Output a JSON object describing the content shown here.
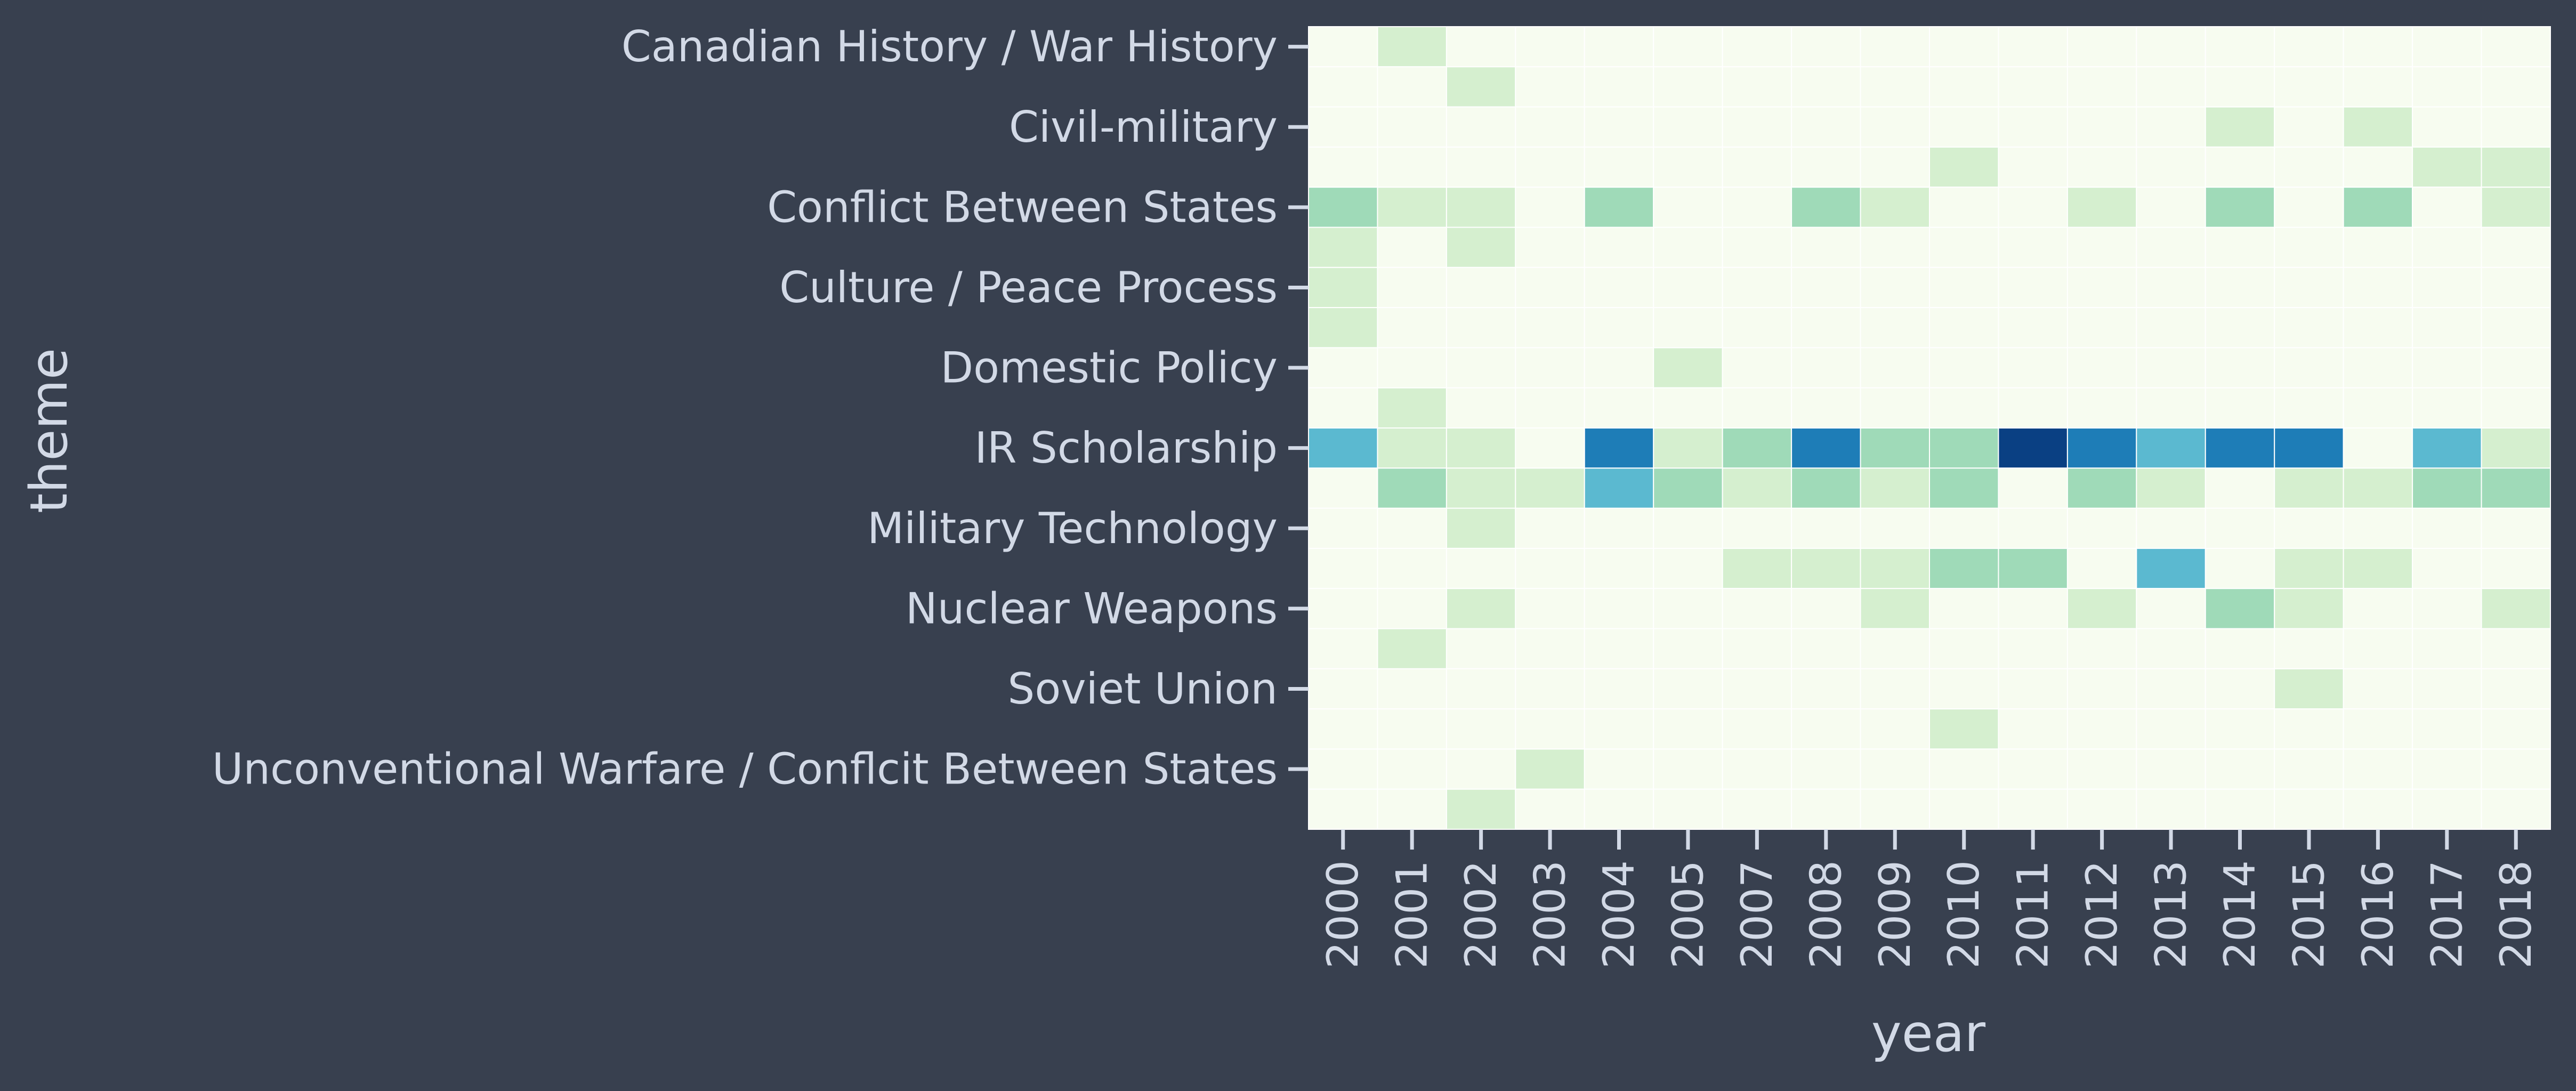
{
  "chart_data": {
    "type": "heatmap",
    "xlabel": "year",
    "ylabel": "theme",
    "x": [
      "2000",
      "2001",
      "2002",
      "2003",
      "2004",
      "2005",
      "2007",
      "2008",
      "2009",
      "2010",
      "2011",
      "2012",
      "2013",
      "2014",
      "2015",
      "2016",
      "2017",
      "2018"
    ],
    "y_labels": [
      "Canadian History / War History",
      "",
      "Civil-military",
      "",
      "Conflict Between States",
      "",
      "Culture / Peace Process",
      "",
      "Domestic Policy",
      "",
      "IR Scholarship",
      "",
      "Military Technology",
      "",
      "Nuclear Weapons",
      "",
      "Soviet Union",
      "",
      "Unconventional Warfare / Conflcit Between States",
      ""
    ],
    "colorscale": [
      "#f7fcf0",
      "#d5efcf",
      "#9fdab8",
      "#5bb9d0",
      "#1e7db7",
      "#0a4083"
    ],
    "values": [
      [
        0,
        1,
        0,
        0,
        0,
        0,
        0,
        0,
        0,
        0,
        0,
        0,
        0,
        0,
        0,
        0,
        0,
        0
      ],
      [
        0,
        0,
        1,
        0,
        0,
        0,
        0,
        0,
        0,
        0,
        0,
        0,
        0,
        0,
        0,
        0,
        0,
        0
      ],
      [
        0,
        0,
        0,
        0,
        0,
        0,
        0,
        0,
        0,
        0,
        0,
        0,
        0,
        1,
        0,
        1,
        0,
        0
      ],
      [
        0,
        0,
        0,
        0,
        0,
        0,
        0,
        0,
        0,
        1,
        0,
        0,
        0,
        0,
        0,
        0,
        1,
        1
      ],
      [
        2,
        1,
        1,
        0,
        2,
        0,
        0,
        2,
        1,
        0,
        0,
        1,
        0,
        2,
        0,
        2,
        0,
        1
      ],
      [
        1,
        0,
        1,
        0,
        0,
        0,
        0,
        0,
        0,
        0,
        0,
        0,
        0,
        0,
        0,
        0,
        0,
        0
      ],
      [
        1,
        0,
        0,
        0,
        0,
        0,
        0,
        0,
        0,
        0,
        0,
        0,
        0,
        0,
        0,
        0,
        0,
        0
      ],
      [
        1,
        0,
        0,
        0,
        0,
        0,
        0,
        0,
        0,
        0,
        0,
        0,
        0,
        0,
        0,
        0,
        0,
        0
      ],
      [
        0,
        0,
        0,
        0,
        0,
        1,
        0,
        0,
        0,
        0,
        0,
        0,
        0,
        0,
        0,
        0,
        0,
        0
      ],
      [
        0,
        1,
        0,
        0,
        0,
        0,
        0,
        0,
        0,
        0,
        0,
        0,
        0,
        0,
        0,
        0,
        0,
        0
      ],
      [
        3,
        1,
        1,
        0,
        4,
        1,
        2,
        4,
        2,
        2,
        5,
        4,
        3,
        4,
        4,
        0,
        3,
        1
      ],
      [
        0,
        2,
        1,
        1,
        3,
        2,
        1,
        2,
        1,
        2,
        0,
        2,
        1,
        0,
        1,
        1,
        2,
        2
      ],
      [
        0,
        0,
        1,
        0,
        0,
        0,
        0,
        0,
        0,
        0,
        0,
        0,
        0,
        0,
        0,
        0,
        0,
        0
      ],
      [
        0,
        0,
        0,
        0,
        0,
        0,
        1,
        1,
        1,
        2,
        2,
        0,
        3,
        0,
        1,
        1,
        0,
        0
      ],
      [
        0,
        0,
        1,
        0,
        0,
        0,
        0,
        0,
        1,
        0,
        0,
        1,
        0,
        2,
        1,
        0,
        0,
        1
      ],
      [
        0,
        1,
        0,
        0,
        0,
        0,
        0,
        0,
        0,
        0,
        0,
        0,
        0,
        0,
        0,
        0,
        0,
        0
      ],
      [
        0,
        0,
        0,
        0,
        0,
        0,
        0,
        0,
        0,
        0,
        0,
        0,
        0,
        0,
        1,
        0,
        0,
        0
      ],
      [
        0,
        0,
        0,
        0,
        0,
        0,
        0,
        0,
        0,
        1,
        0,
        0,
        0,
        0,
        0,
        0,
        0,
        0
      ],
      [
        0,
        0,
        0,
        1,
        0,
        0,
        0,
        0,
        0,
        0,
        0,
        0,
        0,
        0,
        0,
        0,
        0,
        0
      ],
      [
        0,
        0,
        1,
        0,
        0,
        0,
        0,
        0,
        0,
        0,
        0,
        0,
        0,
        0,
        0,
        0,
        0,
        0
      ]
    ]
  }
}
